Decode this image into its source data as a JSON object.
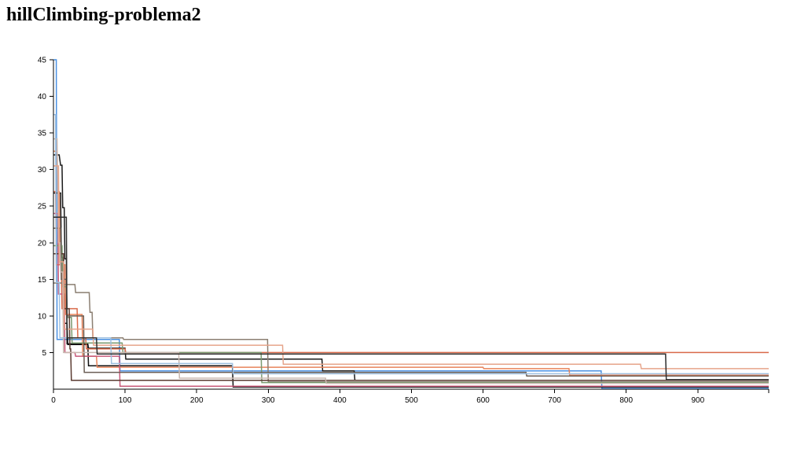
{
  "page": {
    "title": "hillClimbing-problema2"
  },
  "chart_data": {
    "type": "line",
    "title": "hillClimbing-problema2",
    "xlabel": "",
    "ylabel": "",
    "xlim": [
      0,
      999
    ],
    "ylim": [
      0,
      45
    ],
    "x_ticks": [
      0,
      100,
      200,
      300,
      400,
      500,
      600,
      700,
      800,
      900
    ],
    "y_ticks": [
      5,
      10,
      15,
      20,
      25,
      30,
      35,
      40,
      45
    ],
    "grid": false,
    "legend": "none",
    "series": [
      {
        "color": "#4a90e2",
        "steps": [
          [
            0,
            45
          ],
          [
            4,
            45
          ],
          [
            5,
            6.8
          ],
          [
            92,
            6.8
          ],
          [
            93,
            2.5
          ],
          [
            765,
            2.5
          ],
          [
            766,
            0.1
          ],
          [
            999,
            0.1
          ]
        ]
      },
      {
        "color": "#1a1a1a",
        "steps": [
          [
            0,
            32
          ],
          [
            8,
            32
          ],
          [
            10,
            30.6
          ],
          [
            12,
            30.6
          ],
          [
            13,
            24.8
          ],
          [
            15,
            24.8
          ],
          [
            16,
            17.8
          ],
          [
            18,
            17.8
          ],
          [
            19,
            6.2
          ],
          [
            48,
            6.2
          ],
          [
            49,
            5.6
          ],
          [
            100,
            5.6
          ],
          [
            101,
            4.1
          ],
          [
            375,
            4.1
          ],
          [
            376,
            2.5
          ],
          [
            420,
            2.5
          ],
          [
            421,
            1.2
          ],
          [
            999,
            1.2
          ]
        ]
      },
      {
        "color": "#111111",
        "steps": [
          [
            0,
            26.8
          ],
          [
            10,
            26.8
          ],
          [
            11,
            18
          ],
          [
            13,
            18
          ],
          [
            14,
            9
          ],
          [
            19,
            9
          ],
          [
            20,
            6.1
          ],
          [
            48,
            6.1
          ],
          [
            49,
            3.2
          ],
          [
            250,
            3.2
          ],
          [
            251,
            0.3
          ],
          [
            999,
            0.3
          ]
        ]
      },
      {
        "color": "#e8835a",
        "steps": [
          [
            0,
            32.5
          ],
          [
            5,
            32.5
          ],
          [
            6,
            27
          ],
          [
            8,
            27
          ],
          [
            9,
            17
          ],
          [
            16,
            17
          ],
          [
            17,
            10.2
          ],
          [
            40,
            10.2
          ],
          [
            41,
            4.5
          ],
          [
            60,
            4.5
          ],
          [
            61,
            3
          ],
          [
            600,
            3
          ],
          [
            601,
            2.8
          ],
          [
            720,
            2.8
          ],
          [
            721,
            1.9
          ],
          [
            999,
            1.9
          ]
        ]
      },
      {
        "color": "#d96a4a",
        "steps": [
          [
            0,
            27
          ],
          [
            3,
            27
          ],
          [
            4,
            17
          ],
          [
            11,
            17
          ],
          [
            12,
            11
          ],
          [
            33,
            11
          ],
          [
            34,
            7
          ],
          [
            45,
            7
          ],
          [
            46,
            5.5
          ],
          [
            100,
            5.5
          ],
          [
            101,
            5
          ],
          [
            999,
            5
          ]
        ]
      },
      {
        "color": "#c85a7a",
        "steps": [
          [
            0,
            24
          ],
          [
            6,
            24
          ],
          [
            7,
            13
          ],
          [
            15,
            13
          ],
          [
            16,
            5
          ],
          [
            30,
            5
          ],
          [
            31,
            4.5
          ],
          [
            92,
            4.5
          ],
          [
            93,
            0.4
          ],
          [
            999,
            0.4
          ]
        ]
      },
      {
        "color": "#8b7f72",
        "steps": [
          [
            0,
            14.5
          ],
          [
            14,
            14.5
          ],
          [
            15,
            14.3
          ],
          [
            30,
            14.3
          ],
          [
            31,
            13.2
          ],
          [
            50,
            13.2
          ],
          [
            51,
            10.5
          ],
          [
            54,
            10.5
          ],
          [
            55,
            7
          ],
          [
            97,
            7
          ],
          [
            98,
            6.8
          ],
          [
            299,
            6.8
          ],
          [
            300,
            1
          ],
          [
            999,
            1
          ]
        ]
      },
      {
        "color": "#7a9a6f",
        "steps": [
          [
            0,
            19.6
          ],
          [
            12,
            19.6
          ],
          [
            13,
            14
          ],
          [
            18,
            14
          ],
          [
            19,
            9.8
          ],
          [
            25,
            9.8
          ],
          [
            26,
            6.3
          ],
          [
            96,
            6.3
          ],
          [
            97,
            5
          ],
          [
            290,
            5
          ],
          [
            291,
            0.9
          ],
          [
            999,
            0.9
          ]
        ]
      },
      {
        "color": "#5a3a30",
        "steps": [
          [
            0,
            18.5
          ],
          [
            14,
            18.5
          ],
          [
            15,
            11
          ],
          [
            22,
            11
          ],
          [
            23,
            5.5
          ],
          [
            24,
            5.5
          ],
          [
            25,
            1.2
          ],
          [
            999,
            1.2
          ]
        ]
      },
      {
        "color": "#6b5e55",
        "steps": [
          [
            0,
            22
          ],
          [
            10,
            22
          ],
          [
            11,
            15
          ],
          [
            18,
            15
          ],
          [
            19,
            10
          ],
          [
            42,
            10
          ],
          [
            43,
            2.3
          ],
          [
            660,
            2.3
          ],
          [
            661,
            1.8
          ],
          [
            999,
            1.8
          ]
        ]
      },
      {
        "color": "#c9b8b0",
        "steps": [
          [
            0,
            34.2
          ],
          [
            5,
            34.2
          ],
          [
            7,
            20
          ],
          [
            9,
            20
          ],
          [
            10,
            16
          ],
          [
            13,
            16
          ],
          [
            14,
            5
          ],
          [
            175,
            5
          ],
          [
            176,
            1.5
          ],
          [
            380,
            1.5
          ],
          [
            381,
            0.8
          ],
          [
            999,
            0.8
          ]
        ]
      },
      {
        "color": "#9ec0e0",
        "steps": [
          [
            0,
            37.5
          ],
          [
            3,
            37.5
          ],
          [
            4,
            14.6
          ],
          [
            8,
            14.6
          ],
          [
            9,
            7
          ],
          [
            80,
            7
          ],
          [
            81,
            3.5
          ],
          [
            250,
            3.5
          ],
          [
            251,
            2.1
          ],
          [
            999,
            2.1
          ]
        ]
      },
      {
        "color": "#e6a48a",
        "steps": [
          [
            0,
            30.5
          ],
          [
            7,
            30.5
          ],
          [
            8,
            17.4
          ],
          [
            14,
            17.4
          ],
          [
            15,
            8.2
          ],
          [
            55,
            8.2
          ],
          [
            56,
            6
          ],
          [
            320,
            6
          ],
          [
            321,
            3.4
          ],
          [
            820,
            3.4
          ],
          [
            821,
            2.8
          ],
          [
            999,
            2.8
          ]
        ]
      },
      {
        "color": "#2e2e2e",
        "steps": [
          [
            0,
            23.5
          ],
          [
            18,
            23.5
          ],
          [
            19,
            7
          ],
          [
            60,
            7
          ],
          [
            61,
            4.8
          ],
          [
            855,
            4.8
          ],
          [
            856,
            1.3
          ],
          [
            999,
            1.3
          ]
        ]
      }
    ]
  }
}
